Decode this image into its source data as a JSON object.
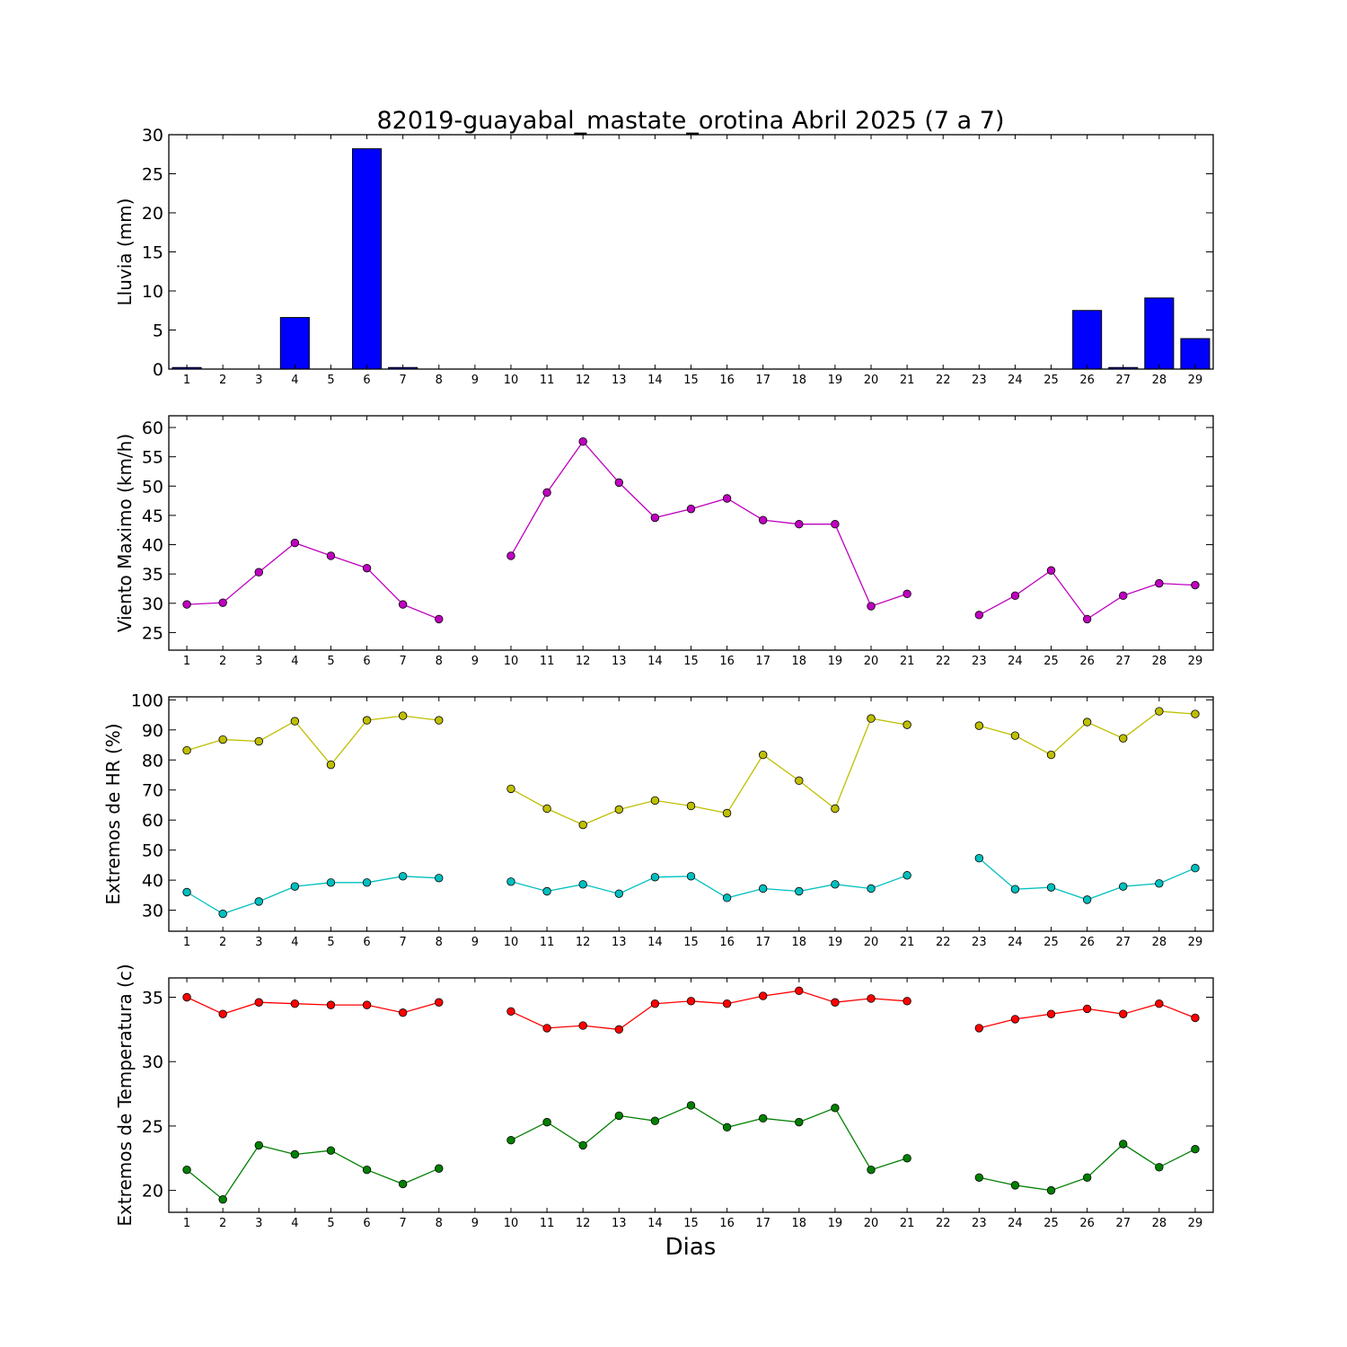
{
  "figure": {
    "title": "82019-guayabal_mastate_orotina Abril 2025  (7 a 7)",
    "xlabel": "Dias"
  },
  "chart_data": [
    {
      "type": "bar",
      "ylabel": "Lluvia (mm)",
      "ylim": [
        0,
        30
      ],
      "yticks": [
        0,
        5,
        10,
        15,
        20,
        25,
        30
      ],
      "xlim": [
        0.5,
        29.5
      ],
      "x": [
        1,
        2,
        3,
        4,
        5,
        6,
        7,
        8,
        9,
        10,
        11,
        12,
        13,
        14,
        15,
        16,
        17,
        18,
        19,
        20,
        21,
        22,
        23,
        24,
        25,
        26,
        27,
        28,
        29
      ],
      "series": [
        {
          "color": "#0000ff",
          "values": [
            0.2,
            0,
            0,
            6.6,
            0,
            28.2,
            0.2,
            0,
            0,
            0,
            0,
            0,
            0,
            0,
            0,
            0,
            0,
            0,
            0,
            0,
            0,
            0,
            0,
            0,
            0,
            7.5,
            0.2,
            9.1,
            3.9
          ]
        }
      ]
    },
    {
      "type": "line",
      "ylabel": "Viento Maximo (km/h)",
      "ylim": [
        22,
        62
      ],
      "yticks": [
        25,
        30,
        35,
        40,
        45,
        50,
        55,
        60
      ],
      "xlim": [
        0.5,
        29.5
      ],
      "x": [
        1,
        2,
        3,
        4,
        5,
        6,
        7,
        8,
        9,
        10,
        11,
        12,
        13,
        14,
        15,
        16,
        17,
        18,
        19,
        20,
        21,
        22,
        23,
        24,
        25,
        26,
        27,
        28,
        29
      ],
      "series": [
        {
          "color": "#bf00bf",
          "values": [
            29.8,
            30.1,
            35.3,
            40.3,
            38.1,
            36.0,
            29.8,
            27.3,
            null,
            38.1,
            48.9,
            57.6,
            50.6,
            44.6,
            46.1,
            47.9,
            44.2,
            43.5,
            43.5,
            29.5,
            31.6,
            null,
            28.0,
            31.3,
            35.6,
            27.3,
            31.3,
            33.4,
            33.1
          ]
        }
      ]
    },
    {
      "type": "line",
      "ylabel": "Extremos de HR (%)",
      "ylim": [
        23,
        101
      ],
      "yticks": [
        30,
        40,
        50,
        60,
        70,
        80,
        90,
        100
      ],
      "xlim": [
        0.5,
        29.5
      ],
      "x": [
        1,
        2,
        3,
        4,
        5,
        6,
        7,
        8,
        9,
        10,
        11,
        12,
        13,
        14,
        15,
        16,
        17,
        18,
        19,
        20,
        21,
        22,
        23,
        24,
        25,
        26,
        27,
        28,
        29
      ],
      "series": [
        {
          "color": "#bfbf00",
          "values": [
            83.2,
            86.8,
            86.2,
            92.9,
            78.4,
            93.2,
            94.7,
            93.2,
            null,
            70.4,
            63.8,
            58.4,
            63.5,
            66.5,
            64.7,
            62.3,
            81.7,
            73.1,
            63.8,
            93.8,
            91.7,
            null,
            91.4,
            88.1,
            81.7,
            92.6,
            87.2,
            96.2,
            95.3
          ]
        },
        {
          "color": "#00bfbf",
          "values": [
            36.0,
            28.8,
            32.9,
            37.9,
            39.2,
            39.2,
            41.3,
            40.7,
            null,
            39.5,
            36.3,
            38.6,
            35.5,
            41.0,
            41.3,
            34.1,
            37.2,
            36.3,
            38.6,
            37.2,
            41.6,
            null,
            47.3,
            37.0,
            37.6,
            33.5,
            37.9,
            38.9,
            44.0
          ]
        }
      ]
    },
    {
      "type": "line",
      "ylabel": "Extremos de Temperatura (c)",
      "ylim": [
        18.3,
        36.5
      ],
      "yticks": [
        20,
        25,
        30,
        35
      ],
      "xlim": [
        0.5,
        29.5
      ],
      "x": [
        1,
        2,
        3,
        4,
        5,
        6,
        7,
        8,
        9,
        10,
        11,
        12,
        13,
        14,
        15,
        16,
        17,
        18,
        19,
        20,
        21,
        22,
        23,
        24,
        25,
        26,
        27,
        28,
        29
      ],
      "series": [
        {
          "color": "#ff0000",
          "values": [
            35.0,
            33.7,
            34.6,
            34.5,
            34.4,
            34.4,
            33.8,
            34.6,
            null,
            33.9,
            32.6,
            32.8,
            32.5,
            34.5,
            34.7,
            34.5,
            35.1,
            35.5,
            34.6,
            34.9,
            34.7,
            null,
            32.6,
            33.3,
            33.7,
            34.1,
            33.7,
            34.5,
            33.4
          ]
        },
        {
          "color": "#008000",
          "values": [
            21.6,
            19.3,
            23.5,
            22.8,
            23.1,
            21.6,
            20.5,
            21.7,
            null,
            23.9,
            25.3,
            23.5,
            25.8,
            25.4,
            26.6,
            24.9,
            25.6,
            25.3,
            26.4,
            21.6,
            22.5,
            null,
            21.0,
            20.4,
            20.0,
            21.0,
            23.6,
            21.8,
            23.2
          ]
        }
      ]
    }
  ]
}
